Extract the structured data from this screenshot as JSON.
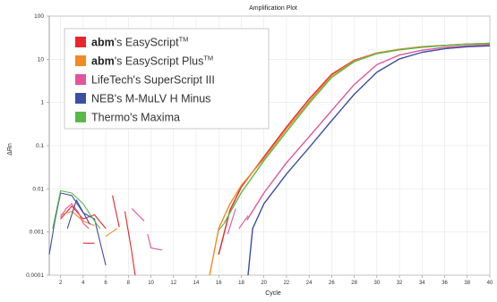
{
  "chart_data": {
    "type": "line",
    "title": "Amplification Plot",
    "xlabel": "Cycle",
    "ylabel": "ΔRn",
    "y_scale": "log",
    "xlim": [
      1,
      40
    ],
    "ylim": [
      0.0001,
      100
    ],
    "x_ticks": [
      2,
      4,
      6,
      8,
      10,
      12,
      14,
      16,
      18,
      20,
      22,
      24,
      26,
      28,
      30,
      32,
      34,
      36,
      38,
      40
    ],
    "y_ticks": [
      {
        "value": 0.0001,
        "label": "0.0001"
      },
      {
        "value": 0.001,
        "label": "0.001"
      },
      {
        "value": 0.01,
        "label": "0.01"
      },
      {
        "value": 0.1,
        "label": "0.1"
      },
      {
        "value": 1,
        "label": "1"
      },
      {
        "value": 10,
        "label": "10"
      },
      {
        "value": 100,
        "label": "100"
      }
    ],
    "grid": true,
    "legend_position": "top-left",
    "legend": [
      {
        "brand": "abm",
        "rest": "'s EasyScript",
        "sup": "TM",
        "color": "#e8262b"
      },
      {
        "brand": "abm",
        "rest": "'s EasyScript Plus",
        "sup": "TM",
        "color": "#f08a24"
      },
      {
        "brand": "",
        "rest": "LifeTech's SuperScript III",
        "sup": "",
        "color": "#e0559c"
      },
      {
        "brand": "",
        "rest": "NEB's M-MuLV H Minus",
        "sup": "",
        "color": "#3c4fa0"
      },
      {
        "brand": "",
        "rest": "Thermo's Maxima",
        "sup": "",
        "color": "#57b947"
      }
    ],
    "series": [
      {
        "color": "#e8262b",
        "noise": [
          [
            [
              2,
              0.002
            ],
            [
              3,
              0.004
            ],
            [
              4,
              0.002
            ],
            [
              5,
              0.0025
            ],
            [
              6,
              0.0012
            ]
          ],
          [
            [
              4,
              0.00055
            ],
            [
              5,
              0.00055
            ]
          ],
          [
            [
              6.6,
              0.007
            ],
            [
              7.2,
              0.0013
            ]
          ],
          [
            [
              7.7,
              0.003
            ],
            [
              8.3,
              0.00035
            ],
            [
              8.6,
              0.0001
            ]
          ]
        ],
        "curve": [
          [
            16,
            0.0003
          ],
          [
            17,
            0.0032
          ],
          [
            18,
            0.011
          ],
          [
            20,
            0.055
          ],
          [
            22,
            0.27
          ],
          [
            24,
            1.2
          ],
          [
            26,
            4.5
          ],
          [
            28,
            9.5
          ],
          [
            30,
            14
          ],
          [
            32,
            17
          ],
          [
            34,
            19.5
          ],
          [
            36,
            21
          ],
          [
            38,
            22.5
          ],
          [
            40,
            23.5
          ]
        ]
      },
      {
        "color": "#f08a24",
        "noise": [
          [
            [
              2,
              0.0025
            ],
            [
              3,
              0.003
            ],
            [
              4,
              0.0018
            ],
            [
              5,
              0.0014
            ]
          ],
          [
            [
              6,
              0.0008
            ],
            [
              7,
              0.0012
            ]
          ]
        ],
        "curve": [
          [
            15.2,
            0.0001
          ],
          [
            16,
            0.0012
          ],
          [
            17,
            0.0045
          ],
          [
            18,
            0.012
          ],
          [
            20,
            0.05
          ],
          [
            22,
            0.24
          ],
          [
            24,
            1.05
          ],
          [
            26,
            4.2
          ],
          [
            28,
            9.2
          ],
          [
            30,
            14
          ],
          [
            32,
            17
          ],
          [
            34,
            19.2
          ],
          [
            36,
            21
          ],
          [
            38,
            22.5
          ],
          [
            40,
            23.3
          ]
        ]
      },
      {
        "color": "#e0559c",
        "noise": [
          [
            [
              2,
              0.0022
            ],
            [
              2.5,
              0.0035
            ],
            [
              3,
              0.0045
            ],
            [
              3.6,
              0.0028
            ],
            [
              4,
              0.0016
            ],
            [
              4.5,
              0.0012
            ]
          ],
          [
            [
              8.3,
              0.0035
            ],
            [
              9.4,
              0.0018
            ]
          ],
          [
            [
              9.7,
              0.0009
            ],
            [
              10,
              0.00043
            ],
            [
              11,
              0.00038
            ]
          ],
          [
            [
              16.8,
              0.0009
            ],
            [
              17.5,
              0.0035
            ]
          ],
          [
            [
              17.8,
              0.0012
            ],
            [
              18.6,
              0.0024
            ]
          ]
        ],
        "curve": [
          [
            18.5,
            0.0019
          ],
          [
            20,
            0.008
          ],
          [
            22,
            0.04
          ],
          [
            24,
            0.16
          ],
          [
            26,
            0.65
          ],
          [
            28,
            2.6
          ],
          [
            30,
            7.5
          ],
          [
            32,
            12.5
          ],
          [
            34,
            16.2
          ],
          [
            36,
            18.8
          ],
          [
            38,
            20.5
          ],
          [
            40,
            21.8
          ]
        ]
      },
      {
        "color": "#3c4fa0",
        "noise": [
          [
            [
              1,
              0.0003
            ],
            [
              1.5,
              0.0018
            ],
            [
              2,
              0.008
            ],
            [
              3,
              0.007
            ],
            [
              4,
              0.0028
            ],
            [
              5,
              0.002
            ],
            [
              6,
              0.00017
            ]
          ],
          [
            [
              2.6,
              0.0012
            ],
            [
              3.4,
              0.0055
            ],
            [
              4.6,
              0.0015
            ]
          ]
        ],
        "curve": [
          [
            18.6,
            0.0001
          ],
          [
            19,
            0.0012
          ],
          [
            20,
            0.0045
          ],
          [
            22,
            0.022
          ],
          [
            24,
            0.09
          ],
          [
            26,
            0.38
          ],
          [
            28,
            1.55
          ],
          [
            30,
            5
          ],
          [
            32,
            10.2
          ],
          [
            34,
            14.5
          ],
          [
            36,
            17.5
          ],
          [
            38,
            19.5
          ],
          [
            40,
            20.5
          ]
        ]
      },
      {
        "color": "#57b947",
        "noise": [
          [
            [
              1.3,
              0.0012
            ],
            [
              2,
              0.009
            ],
            [
              3,
              0.008
            ],
            [
              4,
              0.0045
            ],
            [
              5,
              0.0018
            ],
            [
              5.5,
              0.0012
            ]
          ],
          [
            [
              16,
              0.0011
            ],
            [
              16.5,
              0.0016
            ]
          ]
        ],
        "curve": [
          [
            16.5,
            0.0016
          ],
          [
            17,
            0.0028
          ],
          [
            18,
            0.0082
          ],
          [
            20,
            0.045
          ],
          [
            22,
            0.21
          ],
          [
            24,
            0.95
          ],
          [
            26,
            3.8
          ],
          [
            28,
            8.8
          ],
          [
            30,
            13.5
          ],
          [
            32,
            16.5
          ],
          [
            34,
            19
          ],
          [
            36,
            20.8
          ],
          [
            38,
            22.3
          ],
          [
            40,
            23.2
          ]
        ]
      }
    ]
  }
}
